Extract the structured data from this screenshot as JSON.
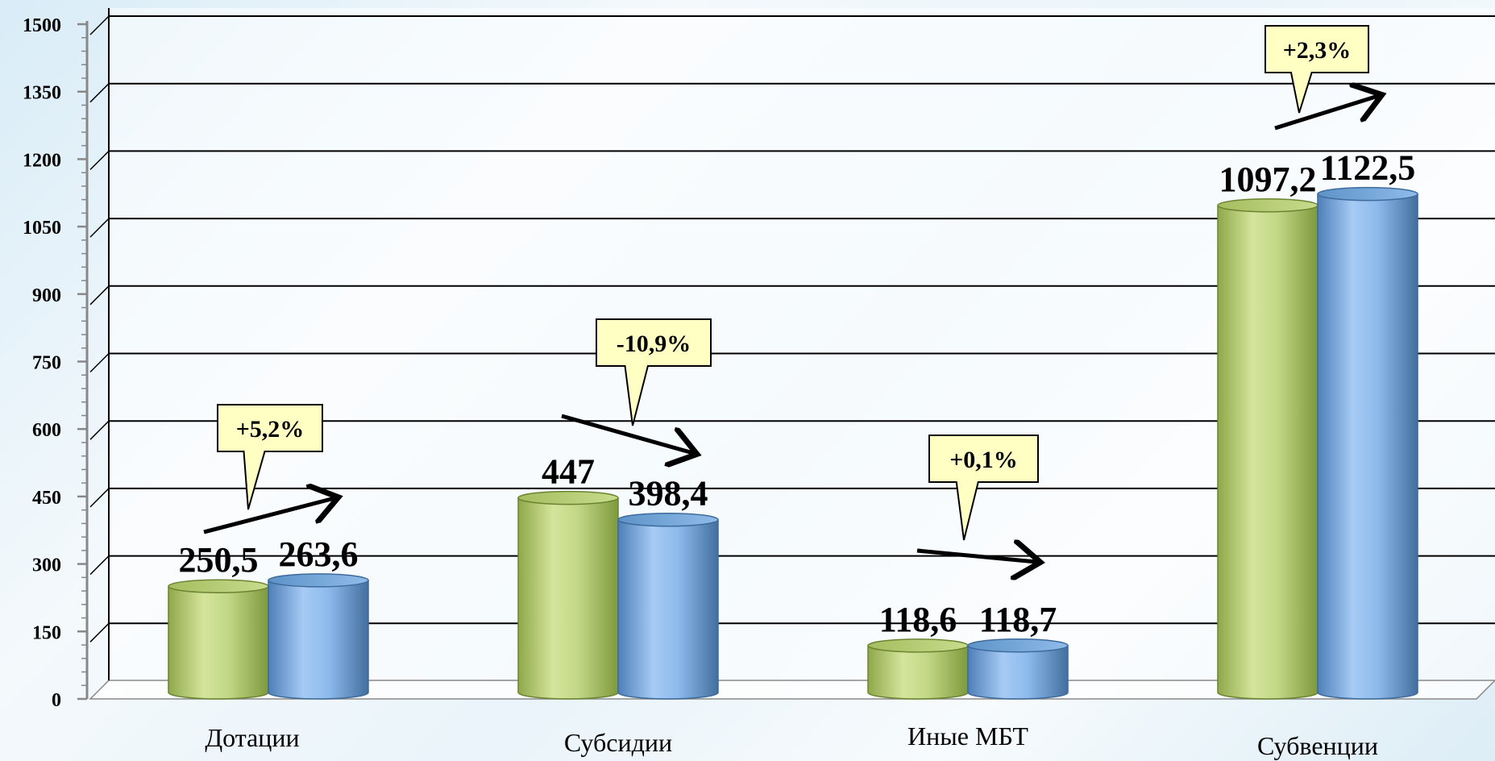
{
  "chart_data": {
    "type": "bar",
    "categories": [
      "Дотации",
      "Субсидии",
      "Иные МБТ",
      "Субвенции"
    ],
    "series": [
      {
        "values": [
          250.5,
          447,
          118.6,
          1097.2
        ],
        "labels": [
          "250,5",
          "447",
          "118,6",
          "1097,2"
        ],
        "color": "#b6cc72"
      },
      {
        "values": [
          263.6,
          398.4,
          118.7,
          1122.5
        ],
        "labels": [
          "263,6",
          "398,4",
          "118,7",
          "1122,5"
        ],
        "color": "#7fb0e6"
      }
    ],
    "changes": [
      "+5,2%",
      "-10,9%",
      "+0,1%",
      "+2,3%"
    ],
    "yticks": [
      "0",
      "150",
      "300",
      "450",
      "600",
      "750",
      "900",
      "1050",
      "1200",
      "1350",
      "1500"
    ],
    "ylim": [
      0,
      1500
    ],
    "grid": true,
    "style": "3d-cylinder"
  }
}
